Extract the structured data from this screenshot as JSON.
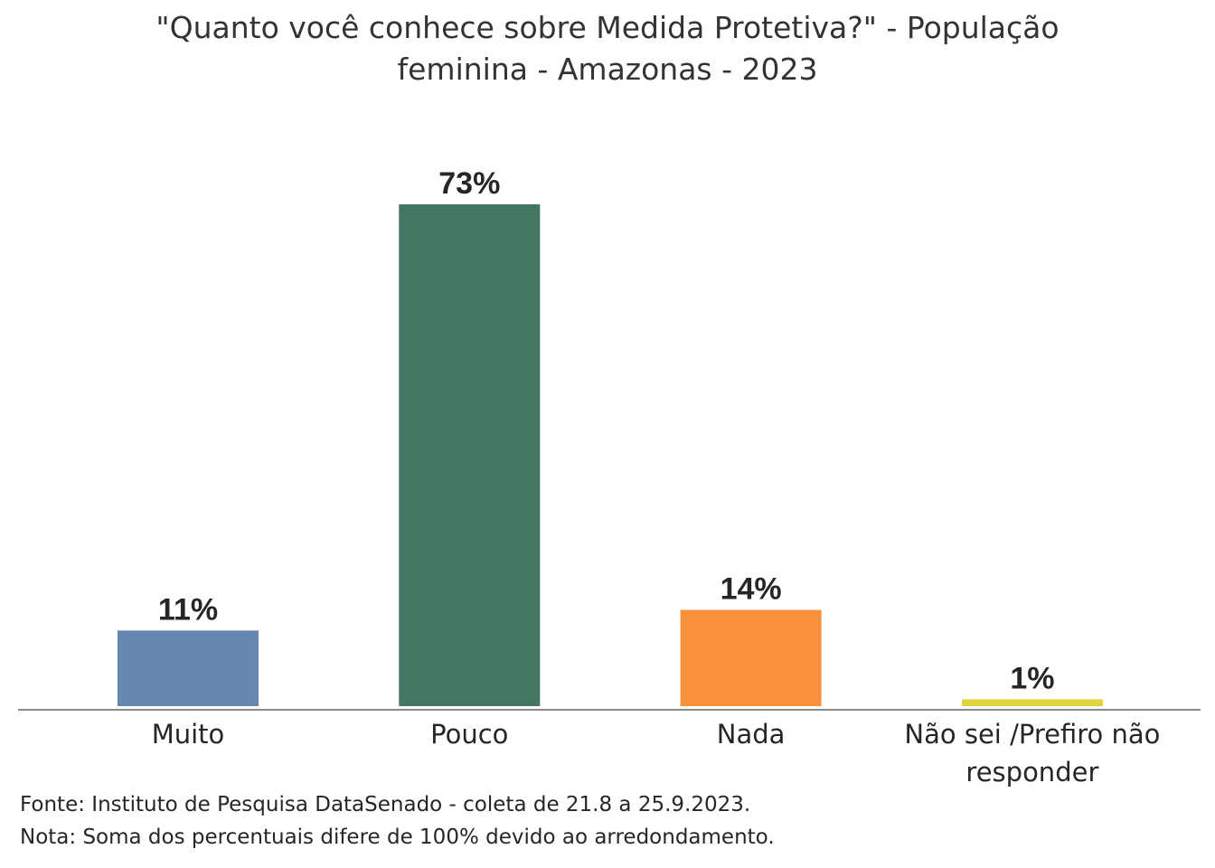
{
  "chart_data": {
    "type": "bar",
    "title_lines": [
      "\"Quanto você conhece sobre Medida Protetiva?\" - População",
      "feminina - Amazonas - 2023"
    ],
    "categories": [
      [
        "Muito"
      ],
      [
        "Pouco"
      ],
      [
        "Nada"
      ],
      [
        "Não sei /Prefiro não",
        "responder"
      ]
    ],
    "values": [
      11,
      73,
      14,
      1
    ],
    "value_labels": [
      "11%",
      "73%",
      "14%",
      "1%"
    ],
    "colors": [
      "#6688b0",
      "#457563",
      "#f9913c",
      "#e1d33c"
    ],
    "ylim": [
      0,
      73
    ],
    "xlabel": "",
    "ylabel": "",
    "grid": false
  },
  "footer": {
    "source": "Fonte: Instituto de Pesquisa DataSenado - coleta de 21.8 a 25.9.2023.",
    "note": "Nota: Soma dos percentuais difere de 100% devido ao arredondamento."
  }
}
